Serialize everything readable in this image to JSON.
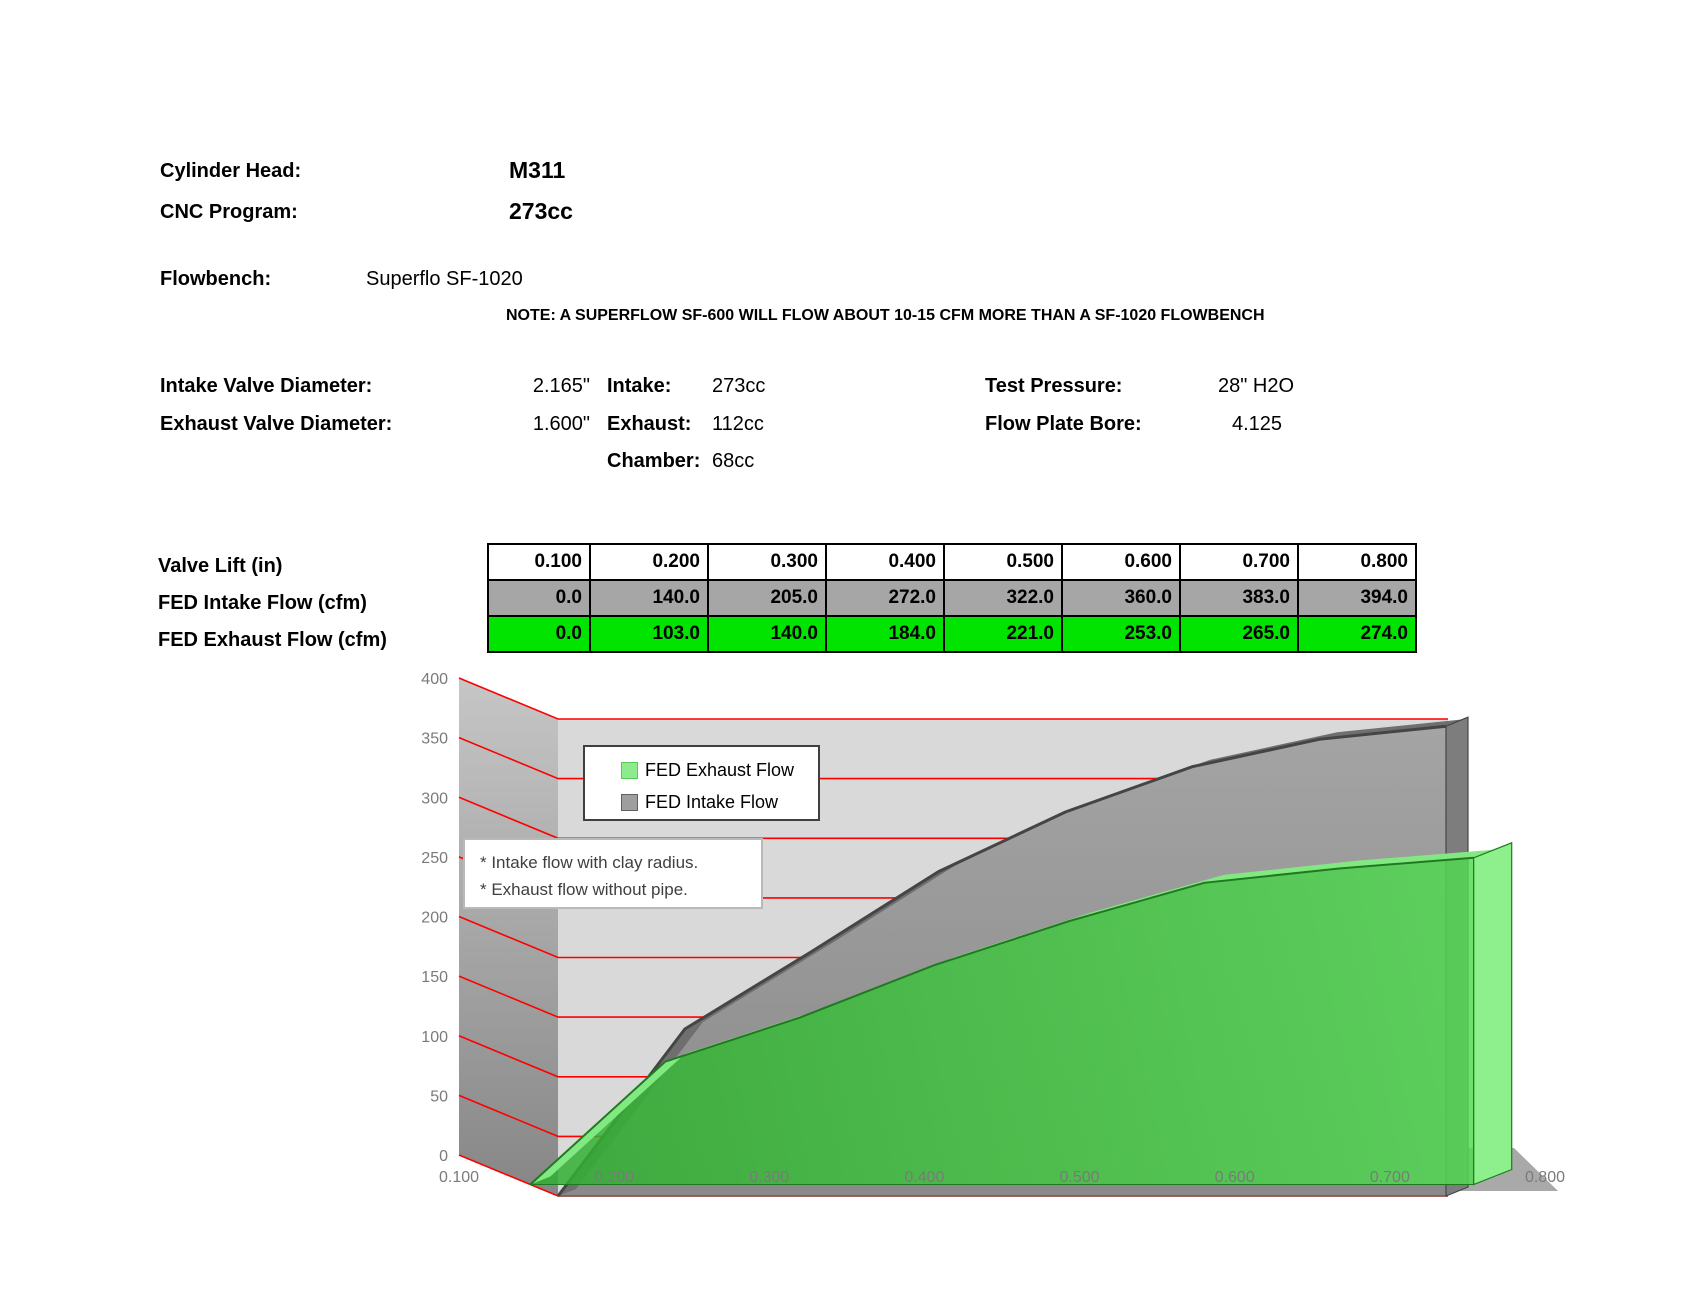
{
  "header": {
    "cylinder_head_label": "Cylinder Head:",
    "cylinder_head_value": "M311",
    "cnc_program_label": "CNC Program:",
    "cnc_program_value": "273cc",
    "flowbench_label": "Flowbench:",
    "flowbench_value": "Superflo SF-1020",
    "note": "NOTE: A SUPERFLOW SF-600 WILL FLOW ABOUT 10-15 CFM MORE THAN A SF-1020 FLOWBENCH"
  },
  "specs": {
    "intake_valve_label": "Intake Valve Diameter:",
    "intake_valve_value": "2.165\"",
    "exhaust_valve_label": "Exhaust Valve Diameter:",
    "exhaust_valve_value": "1.600\"",
    "intake_label": "Intake:",
    "intake_value": "273cc",
    "exhaust_label": "Exhaust:",
    "exhaust_value": "112cc",
    "chamber_label": "Chamber:",
    "chamber_value": "68cc",
    "test_pressure_label": "Test Pressure:",
    "test_pressure_value": "28\" H2O",
    "flow_plate_label": "Flow Plate Bore:",
    "flow_plate_value": "4.125"
  },
  "table": {
    "row_labels": [
      "Valve Lift (in)",
      "FED Intake Flow (cfm)",
      "FED Exhaust Flow (cfm)"
    ],
    "lift": [
      "0.100",
      "0.200",
      "0.300",
      "0.400",
      "0.500",
      "0.600",
      "0.700",
      "0.800"
    ],
    "intake": [
      "0.0",
      "140.0",
      "205.0",
      "272.0",
      "322.0",
      "360.0",
      "383.0",
      "394.0"
    ],
    "exhaust": [
      "0.0",
      "103.0",
      "140.0",
      "184.0",
      "221.0",
      "253.0",
      "265.0",
      "274.0"
    ],
    "intake_row_color": "#a6a6a6",
    "exhaust_row_color": "#00e400"
  },
  "chart_data": {
    "type": "area",
    "projection": "3d",
    "categories": [
      "0.100",
      "0.200",
      "0.300",
      "0.400",
      "0.500",
      "0.600",
      "0.700",
      "0.800"
    ],
    "series": [
      {
        "name": "FED Exhaust Flow",
        "color": "#3fc43f",
        "values": [
          0,
          103,
          140,
          184,
          221,
          253,
          265,
          274
        ]
      },
      {
        "name": "FED Intake Flow",
        "color": "#969696",
        "values": [
          0,
          140,
          205,
          272,
          322,
          360,
          383,
          394
        ]
      }
    ],
    "xlabel": "",
    "ylabel": "",
    "ylim": [
      0,
      400
    ],
    "ytick_step": 50,
    "gridline_color": "#fe0000",
    "axis_label_color": "#7a7a7a",
    "legend_position": "top-left-inside",
    "annotation_lines": [
      "* Intake flow with clay radius.",
      "* Exhaust flow without pipe."
    ]
  }
}
